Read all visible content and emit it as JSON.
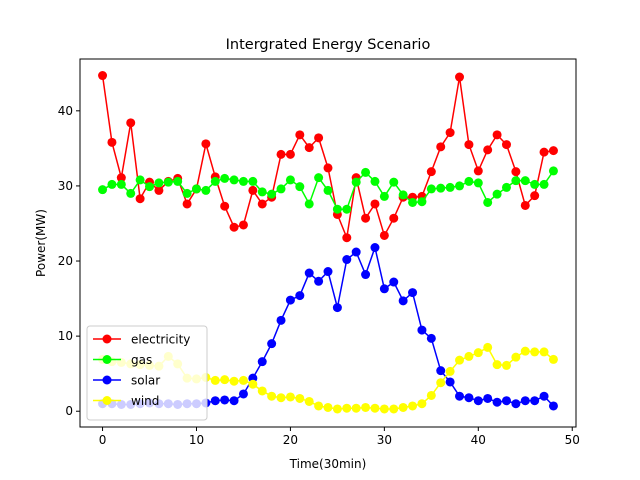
{
  "chart_data": {
    "type": "line",
    "title": "Intergrated Energy Scenario",
    "x_label": "Time(30min)",
    "y_label": "Power(MW)",
    "x": [
      0,
      1,
      2,
      3,
      4,
      5,
      6,
      7,
      8,
      9,
      10,
      11,
      12,
      13,
      14,
      15,
      16,
      17,
      18,
      19,
      20,
      21,
      22,
      23,
      24,
      25,
      26,
      27,
      28,
      29,
      30,
      31,
      32,
      33,
      34,
      35,
      36,
      37,
      38,
      39,
      40,
      41,
      42,
      43,
      44,
      45,
      46,
      47,
      48
    ],
    "series": [
      {
        "name": "electricity",
        "color": "#ff0000",
        "values": [
          44.7,
          35.8,
          31.1,
          38.4,
          28.3,
          30.5,
          29.4,
          30.6,
          31.0,
          27.6,
          29.6,
          35.6,
          31.2,
          27.3,
          24.5,
          24.8,
          29.4,
          27.6,
          28.5,
          34.2,
          34.2,
          36.8,
          35.1,
          36.4,
          32.4,
          26.2,
          23.1,
          31.1,
          25.7,
          27.6,
          23.4,
          25.7,
          28.5,
          28.5,
          28.6,
          31.9,
          35.2,
          37.1,
          44.5,
          35.5,
          32.0,
          34.8,
          36.8,
          35.5,
          31.9,
          27.4,
          28.7,
          34.5,
          34.7
        ]
      },
      {
        "name": "gas",
        "color": "#00ff00",
        "values": [
          29.5,
          30.2,
          30.2,
          29.0,
          30.8,
          29.9,
          30.4,
          30.5,
          30.6,
          29.0,
          29.6,
          29.4,
          30.6,
          31.0,
          30.8,
          30.6,
          30.6,
          29.2,
          28.9,
          29.6,
          30.8,
          29.9,
          27.6,
          31.1,
          29.4,
          26.9,
          26.9,
          30.5,
          31.8,
          30.6,
          28.6,
          30.5,
          28.8,
          27.8,
          27.9,
          29.6,
          29.7,
          29.8,
          30.0,
          30.6,
          30.4,
          27.8,
          28.9,
          29.8,
          30.7,
          30.7,
          30.2,
          30.2,
          32.0
        ]
      },
      {
        "name": "solar",
        "color": "#0000ff",
        "values": [
          1.0,
          1.0,
          0.9,
          0.9,
          1.0,
          1.1,
          1.0,
          1.0,
          0.9,
          1.0,
          1.0,
          1.1,
          1.4,
          1.5,
          1.4,
          2.3,
          4.4,
          6.6,
          9.0,
          12.1,
          14.8,
          15.4,
          18.4,
          17.3,
          18.6,
          13.8,
          20.2,
          21.2,
          18.2,
          21.8,
          16.3,
          17.2,
          14.7,
          15.8,
          10.8,
          9.7,
          5.4,
          3.9,
          2.0,
          1.8,
          1.4,
          1.7,
          1.2,
          1.4,
          1.0,
          1.4,
          1.4,
          2.0,
          0.7
        ]
      },
      {
        "name": "wind",
        "color": "#ffff00",
        "values": [
          6.9,
          6.6,
          6.5,
          6.3,
          6.2,
          6.1,
          6.0,
          7.3,
          6.3,
          4.4,
          4.3,
          4.5,
          4.1,
          4.2,
          4.0,
          4.1,
          3.6,
          2.7,
          2.0,
          1.8,
          1.9,
          1.7,
          1.3,
          0.7,
          0.5,
          0.3,
          0.4,
          0.4,
          0.5,
          0.4,
          0.3,
          0.3,
          0.5,
          0.7,
          1.0,
          2.1,
          3.8,
          5.3,
          6.8,
          7.3,
          7.8,
          8.5,
          6.2,
          6.1,
          7.2,
          8.0,
          7.9,
          7.9,
          6.9
        ]
      }
    ],
    "xlim": [
      -2.4,
      50.4
    ],
    "ylim": [
      -2.1,
      46.9
    ],
    "xticks": [
      0,
      10,
      20,
      30,
      40,
      50
    ],
    "yticks": [
      0,
      10,
      20,
      30,
      40
    ],
    "legend": "lower left"
  }
}
